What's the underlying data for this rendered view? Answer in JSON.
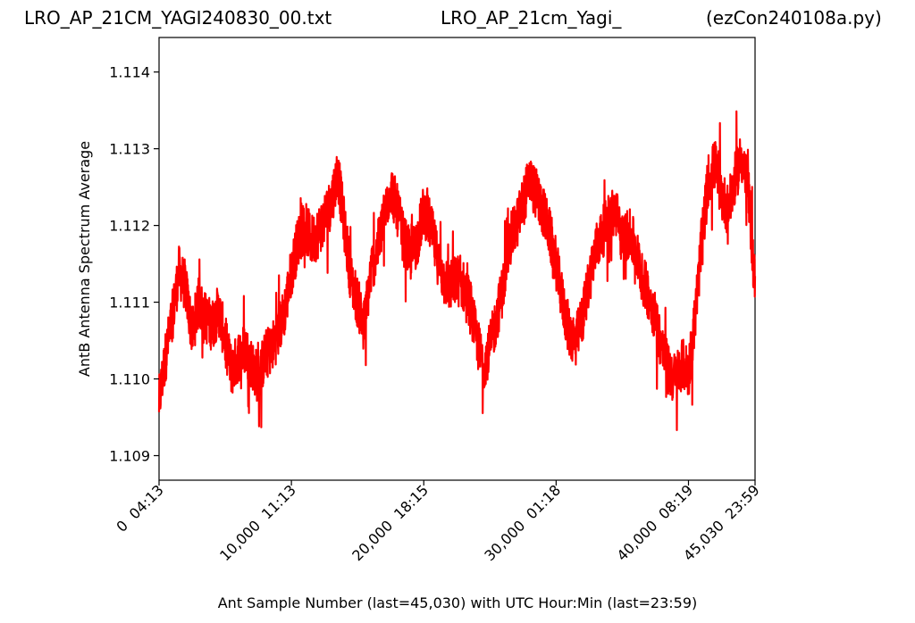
{
  "titles": {
    "left": "LRO_AP_21CM_YAGI240830_00.txt",
    "center": "LRO_AP_21cm_Yagi_",
    "right": "(ezCon240108a.py)"
  },
  "chart_data": {
    "type": "line",
    "xlabel": "Ant Sample Number (last=45,030) with UTC Hour:Min (last=23:59)",
    "ylabel": "AntB Antenna Spectrum Average",
    "xlim": [
      0,
      45030
    ],
    "ylim": [
      1.10868,
      1.11445
    ],
    "grid": false,
    "x_ticks": [
      {
        "value": 0,
        "label": "0  04:13"
      },
      {
        "value": 10000,
        "label": "10,000  11:13"
      },
      {
        "value": 20000,
        "label": "20,000  18:15"
      },
      {
        "value": 30000,
        "label": "30,000  01:18"
      },
      {
        "value": 40000,
        "label": "40,000  08:19"
      },
      {
        "value": 45030,
        "label": "45,030  23:59"
      }
    ],
    "y_ticks": [
      {
        "value": 1.109,
        "label": "1.109"
      },
      {
        "value": 1.11,
        "label": "1.110"
      },
      {
        "value": 1.111,
        "label": "1.111"
      },
      {
        "value": 1.112,
        "label": "1.112"
      },
      {
        "value": 1.113,
        "label": "1.113"
      },
      {
        "value": 1.114,
        "label": "1.114"
      }
    ],
    "series": [
      {
        "color": "#ff0000",
        "x": [
          0,
          500,
          1000,
          1500,
          2000,
          2500,
          3000,
          3500,
          4000,
          4500,
          5000,
          5500,
          6000,
          6500,
          7000,
          7500,
          8000,
          8500,
          9000,
          9500,
          10000,
          10500,
          11000,
          11500,
          12000,
          12500,
          13000,
          13500,
          14000,
          14500,
          15000,
          15500,
          16000,
          16500,
          17000,
          17500,
          18000,
          18500,
          19000,
          19500,
          20000,
          20500,
          21000,
          21500,
          22000,
          22500,
          23000,
          23500,
          24000,
          24500,
          25000,
          25500,
          26000,
          26500,
          27000,
          27500,
          28000,
          28500,
          29000,
          29500,
          30000,
          30500,
          31000,
          31500,
          32000,
          32500,
          33000,
          33500,
          34000,
          34500,
          35000,
          35500,
          36000,
          36500,
          37000,
          37500,
          38000,
          38500,
          39000,
          39500,
          40000,
          40500,
          41000,
          41500,
          42000,
          42500,
          43000,
          43500,
          44000,
          44500,
          45030
        ],
        "y": [
          1.1097,
          1.1103,
          1.1108,
          1.1114,
          1.1112,
          1.1106,
          1.111,
          1.1108,
          1.1107,
          1.1109,
          1.1105,
          1.1101,
          1.1103,
          1.1104,
          1.1102,
          1.11,
          1.1103,
          1.1104,
          1.1106,
          1.1109,
          1.1114,
          1.1118,
          1.112,
          1.1118,
          1.1119,
          1.1121,
          1.1123,
          1.1127,
          1.112,
          1.1113,
          1.111,
          1.1107,
          1.1114,
          1.1117,
          1.1121,
          1.1125,
          1.1122,
          1.1118,
          1.1116,
          1.1118,
          1.1122,
          1.112,
          1.1116,
          1.1113,
          1.1112,
          1.1113,
          1.1112,
          1.111,
          1.1105,
          1.1102,
          1.1104,
          1.1108,
          1.1112,
          1.1118,
          1.112,
          1.1123,
          1.1126,
          1.1124,
          1.1122,
          1.1119,
          1.1115,
          1.111,
          1.1106,
          1.1105,
          1.1108,
          1.1113,
          1.1117,
          1.1119,
          1.1121,
          1.1122,
          1.1118,
          1.1119,
          1.1117,
          1.1113,
          1.1111,
          1.1108,
          1.1104,
          1.1101,
          1.11,
          1.1102,
          1.1101,
          1.1108,
          1.1118,
          1.1126,
          1.1128,
          1.1124,
          1.1122,
          1.1126,
          1.1129,
          1.1125,
          1.1112
        ]
      }
    ]
  }
}
